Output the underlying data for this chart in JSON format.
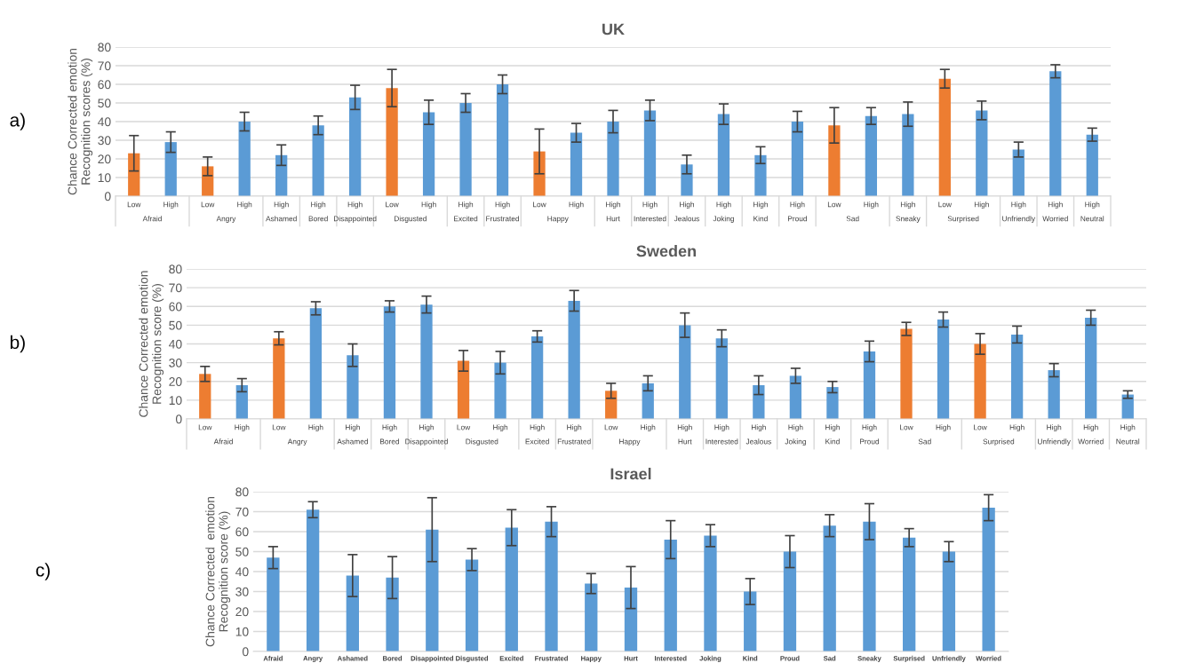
{
  "chart_data": [
    {
      "type": "bar",
      "title": "UK",
      "ylabel": "Chance Corrected emotion\nRecognition scores (%)",
      "annotations": [
        "a)"
      ],
      "ylim": [
        0,
        80
      ],
      "yticks": [
        0,
        10,
        20,
        30,
        40,
        50,
        60,
        70,
        80
      ],
      "grid": "y",
      "legend": false,
      "categories": [
        "Afraid",
        "Angry",
        "Ashamed",
        "Bored",
        "Disappointed",
        "Disgusted",
        "Excited",
        "Frustrated",
        "Happy",
        "Hurt",
        "Interested",
        "Jealous",
        "Joking",
        "Kind",
        "Proud",
        "Sad",
        "Sneaky",
        "Surprised",
        "Unfriendly",
        "Worried",
        "Neutral"
      ],
      "series": [
        {
          "name": "Low",
          "color": "#ed7d31",
          "values": [
            23,
            16,
            null,
            null,
            null,
            58,
            null,
            null,
            24,
            null,
            null,
            null,
            null,
            null,
            null,
            38,
            null,
            63,
            null,
            null,
            null
          ],
          "errors": [
            9.5,
            5,
            null,
            null,
            null,
            10,
            null,
            null,
            12,
            null,
            null,
            null,
            null,
            null,
            null,
            9.5,
            null,
            5,
            null,
            null,
            null
          ]
        },
        {
          "name": "High",
          "color": "#5b9bd5",
          "values": [
            29,
            40,
            22,
            38,
            53,
            45,
            50,
            60,
            34,
            40,
            46,
            17,
            44,
            22,
            40,
            43,
            44,
            46,
            25,
            67,
            33
          ],
          "errors": [
            5.5,
            5,
            5.5,
            5,
            6.5,
            6.5,
            5,
            5,
            5,
            6,
            5.5,
            5,
            5.5,
            4.5,
            5.5,
            4.5,
            6.5,
            5,
            4,
            3.5,
            3.5
          ]
        }
      ]
    },
    {
      "type": "bar",
      "title": "Sweden",
      "ylabel": "Chance Corrected emotion\nRecognition score (%)",
      "annotations": [
        "b)"
      ],
      "ylim": [
        0,
        80
      ],
      "yticks": [
        0,
        10,
        20,
        30,
        40,
        50,
        60,
        70,
        80
      ],
      "grid": "y",
      "legend": false,
      "categories": [
        "Afraid",
        "Angry",
        "Ashamed",
        "Bored",
        "Disappointed",
        "Disgusted",
        "Excited",
        "Frustrated",
        "Happy",
        "Hurt",
        "Interested",
        "Jealous",
        "Joking",
        "Kind",
        "Proud",
        "Sad",
        "Surprised",
        "Unfriendly",
        "Worried",
        "Neutral"
      ],
      "series": [
        {
          "name": "Low",
          "color": "#ed7d31",
          "values": [
            24,
            43,
            null,
            null,
            null,
            31,
            null,
            null,
            15,
            null,
            null,
            null,
            null,
            null,
            null,
            48,
            40,
            null,
            null,
            null
          ],
          "errors": [
            4,
            3.5,
            null,
            null,
            null,
            5.5,
            null,
            null,
            4,
            null,
            null,
            null,
            null,
            null,
            null,
            3.5,
            5.5,
            null,
            null,
            null
          ]
        },
        {
          "name": "High",
          "color": "#5b9bd5",
          "values": [
            18,
            59,
            34,
            60,
            61,
            30,
            44,
            63,
            19,
            50,
            43,
            18,
            23,
            17,
            36,
            53,
            45,
            26,
            54,
            13
          ],
          "errors": [
            3.5,
            3.5,
            6,
            3,
            4.5,
            6,
            3,
            5.5,
            4,
            6.5,
            4.5,
            5,
            4,
            3,
            5.5,
            4,
            4.5,
            3.5,
            4,
            2
          ]
        }
      ]
    },
    {
      "type": "bar",
      "title": "Israel",
      "ylabel": "Chance Corrected  emotion\nRecognition score (%)",
      "annotations": [
        "c)"
      ],
      "ylim": [
        0,
        80
      ],
      "yticks": [
        0,
        10,
        20,
        30,
        40,
        50,
        60,
        70,
        80
      ],
      "grid": "y",
      "legend": false,
      "categories": [
        "Afraid",
        "Angry",
        "Ashamed",
        "Bored",
        "Disappointed",
        "Disgusted",
        "Excited",
        "Frustrated",
        "Happy",
        "Hurt",
        "Interested",
        "Joking",
        "Kind",
        "Proud",
        "Sad",
        "Sneaky",
        "Surprised",
        "Unfriendly",
        "Worried"
      ],
      "series": [
        {
          "color": "#5b9bd5",
          "values": [
            47,
            71,
            38,
            37,
            61,
            46,
            62,
            65,
            34,
            32,
            56,
            58,
            30,
            50,
            63,
            65,
            57,
            50,
            72
          ],
          "errors": [
            5.5,
            4,
            10.5,
            10.5,
            16,
            5.5,
            9,
            7.5,
            5,
            10.5,
            9.5,
            5.5,
            6.5,
            8,
            5.5,
            9,
            4.5,
            5,
            6.5
          ]
        }
      ]
    }
  ]
}
